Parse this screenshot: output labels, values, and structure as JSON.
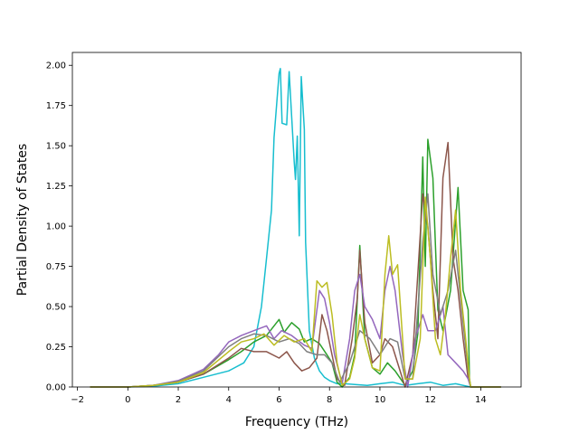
{
  "chart_data": {
    "type": "line",
    "title": "",
    "xlabel": "Frequency (THz)",
    "ylabel": "Partial Density of States",
    "xlim": [
      -2.2,
      15.6
    ],
    "ylim": [
      0.0,
      2.08
    ],
    "xticks": [
      -2,
      0,
      2,
      4,
      6,
      8,
      10,
      12,
      14
    ],
    "xtick_labels": [
      "−2",
      "0",
      "2",
      "4",
      "6",
      "8",
      "10",
      "12",
      "14"
    ],
    "yticks": [
      0.0,
      0.25,
      0.5,
      0.75,
      1.0,
      1.25,
      1.5,
      1.75,
      2.0
    ],
    "ytick_labels": [
      "0.00",
      "0.25",
      "0.50",
      "0.75",
      "1.00",
      "1.25",
      "1.50",
      "1.75",
      "2.00"
    ],
    "grid": false,
    "legend": "none",
    "series": [
      {
        "color": "#17becf",
        "points": [
          [
            -1.5,
            0
          ],
          [
            0,
            0
          ],
          [
            1,
            0.005
          ],
          [
            2,
            0.02
          ],
          [
            3,
            0.06
          ],
          [
            4,
            0.1
          ],
          [
            4.6,
            0.15
          ],
          [
            5,
            0.25
          ],
          [
            5.3,
            0.5
          ],
          [
            5.5,
            0.8
          ],
          [
            5.7,
            1.1
          ],
          [
            5.8,
            1.55
          ],
          [
            5.9,
            1.75
          ],
          [
            6.0,
            1.95
          ],
          [
            6.05,
            1.98
          ],
          [
            6.12,
            1.64
          ],
          [
            6.3,
            1.63
          ],
          [
            6.4,
            1.96
          ],
          [
            6.5,
            1.68
          ],
          [
            6.6,
            1.4
          ],
          [
            6.65,
            1.29
          ],
          [
            6.72,
            1.56
          ],
          [
            6.8,
            0.94
          ],
          [
            6.88,
            1.93
          ],
          [
            7.0,
            1.6
          ],
          [
            7.05,
            0.9
          ],
          [
            7.2,
            0.35
          ],
          [
            7.4,
            0.18
          ],
          [
            7.6,
            0.1
          ],
          [
            7.8,
            0.06
          ],
          [
            8,
            0.04
          ],
          [
            8.3,
            0.02
          ],
          [
            8.6,
            0.02
          ],
          [
            9,
            0.015
          ],
          [
            9.5,
            0.01
          ],
          [
            10,
            0.02
          ],
          [
            10.5,
            0.03
          ],
          [
            11,
            0.01
          ],
          [
            11.5,
            0.02
          ],
          [
            12,
            0.03
          ],
          [
            12.5,
            0.01
          ],
          [
            13,
            0.02
          ],
          [
            13.6,
            0.0
          ],
          [
            14.8,
            0.0
          ]
        ]
      },
      {
        "color": "#2ca02c",
        "points": [
          [
            -1.5,
            0
          ],
          [
            0,
            0
          ],
          [
            1,
            0.01
          ],
          [
            2,
            0.03
          ],
          [
            3,
            0.08
          ],
          [
            4,
            0.17
          ],
          [
            4.5,
            0.22
          ],
          [
            5,
            0.28
          ],
          [
            5.5,
            0.32
          ],
          [
            6.0,
            0.42
          ],
          [
            6.2,
            0.34
          ],
          [
            6.5,
            0.4
          ],
          [
            6.8,
            0.36
          ],
          [
            7.0,
            0.28
          ],
          [
            7.3,
            0.3
          ],
          [
            7.6,
            0.27
          ],
          [
            7.9,
            0.2
          ],
          [
            8.1,
            0.15
          ],
          [
            8.3,
            0.03
          ],
          [
            8.5,
            0.0
          ],
          [
            8.8,
            0.06
          ],
          [
            9.0,
            0.2
          ],
          [
            9.2,
            0.88
          ],
          [
            9.4,
            0.3
          ],
          [
            9.7,
            0.12
          ],
          [
            10,
            0.08
          ],
          [
            10.3,
            0.15
          ],
          [
            10.6,
            0.1
          ],
          [
            11.0,
            0.01
          ],
          [
            11.3,
            0.1
          ],
          [
            11.5,
            0.33
          ],
          [
            11.7,
            1.43
          ],
          [
            11.8,
            0.75
          ],
          [
            11.9,
            1.54
          ],
          [
            12.1,
            1.3
          ],
          [
            12.3,
            0.48
          ],
          [
            12.5,
            0.35
          ],
          [
            12.8,
            0.6
          ],
          [
            13.1,
            1.24
          ],
          [
            13.3,
            0.6
          ],
          [
            13.5,
            0.48
          ],
          [
            13.55,
            0.05
          ],
          [
            13.6,
            0.0
          ],
          [
            14.8,
            0.0
          ]
        ]
      },
      {
        "color": "#8c564b",
        "points": [
          [
            -1.5,
            0
          ],
          [
            0,
            0
          ],
          [
            1,
            0.01
          ],
          [
            2,
            0.03
          ],
          [
            3,
            0.08
          ],
          [
            4,
            0.18
          ],
          [
            4.5,
            0.24
          ],
          [
            5,
            0.22
          ],
          [
            5.5,
            0.22
          ],
          [
            6.0,
            0.18
          ],
          [
            6.3,
            0.22
          ],
          [
            6.6,
            0.15
          ],
          [
            6.9,
            0.1
          ],
          [
            7.2,
            0.12
          ],
          [
            7.5,
            0.18
          ],
          [
            7.7,
            0.45
          ],
          [
            7.9,
            0.35
          ],
          [
            8.1,
            0.2
          ],
          [
            8.3,
            0.05
          ],
          [
            8.6,
            0.01
          ],
          [
            8.9,
            0.3
          ],
          [
            9.1,
            0.55
          ],
          [
            9.2,
            0.85
          ],
          [
            9.4,
            0.4
          ],
          [
            9.7,
            0.15
          ],
          [
            10,
            0.2
          ],
          [
            10.2,
            0.3
          ],
          [
            10.5,
            0.25
          ],
          [
            11.0,
            0.0
          ],
          [
            11.3,
            0.2
          ],
          [
            11.5,
            0.7
          ],
          [
            11.7,
            1.2
          ],
          [
            11.9,
            1.0
          ],
          [
            12.1,
            0.6
          ],
          [
            12.3,
            0.3
          ],
          [
            12.5,
            1.3
          ],
          [
            12.7,
            1.52
          ],
          [
            12.9,
            0.8
          ],
          [
            13.1,
            0.6
          ],
          [
            13.3,
            0.3
          ],
          [
            13.5,
            0.05
          ],
          [
            13.6,
            0.0
          ],
          [
            14.8,
            0.0
          ]
        ]
      },
      {
        "color": "#9467bd",
        "points": [
          [
            -1.5,
            0
          ],
          [
            0,
            0
          ],
          [
            1,
            0.01
          ],
          [
            2,
            0.04
          ],
          [
            3,
            0.11
          ],
          [
            3.6,
            0.2
          ],
          [
            4,
            0.28
          ],
          [
            4.5,
            0.32
          ],
          [
            5,
            0.35
          ],
          [
            5.5,
            0.38
          ],
          [
            5.8,
            0.3
          ],
          [
            6.1,
            0.35
          ],
          [
            6.5,
            0.32
          ],
          [
            7.0,
            0.26
          ],
          [
            7.3,
            0.24
          ],
          [
            7.6,
            0.6
          ],
          [
            7.8,
            0.55
          ],
          [
            8.0,
            0.4
          ],
          [
            8.2,
            0.2
          ],
          [
            8.5,
            0.02
          ],
          [
            8.8,
            0.3
          ],
          [
            9.0,
            0.6
          ],
          [
            9.2,
            0.7
          ],
          [
            9.4,
            0.5
          ],
          [
            9.7,
            0.42
          ],
          [
            10,
            0.3
          ],
          [
            10.2,
            0.6
          ],
          [
            10.4,
            0.75
          ],
          [
            10.6,
            0.6
          ],
          [
            10.9,
            0.2
          ],
          [
            11.1,
            0.0
          ],
          [
            11.4,
            0.3
          ],
          [
            11.7,
            0.45
          ],
          [
            11.9,
            0.35
          ],
          [
            12.2,
            0.35
          ],
          [
            12.5,
            0.5
          ],
          [
            12.7,
            0.2
          ],
          [
            13.0,
            0.15
          ],
          [
            13.3,
            0.1
          ],
          [
            13.5,
            0.05
          ],
          [
            13.6,
            0.0
          ],
          [
            14.8,
            0.0
          ]
        ]
      },
      {
        "color": "#7f7f7f",
        "points": [
          [
            -1.5,
            0
          ],
          [
            0,
            0
          ],
          [
            1,
            0.01
          ],
          [
            2,
            0.035
          ],
          [
            3,
            0.1
          ],
          [
            4,
            0.25
          ],
          [
            4.5,
            0.3
          ],
          [
            5,
            0.33
          ],
          [
            5.5,
            0.32
          ],
          [
            6.0,
            0.28
          ],
          [
            6.4,
            0.3
          ],
          [
            6.8,
            0.27
          ],
          [
            7.1,
            0.22
          ],
          [
            7.5,
            0.2
          ],
          [
            7.8,
            0.2
          ],
          [
            8.1,
            0.15
          ],
          [
            8.4,
            0.03
          ],
          [
            8.8,
            0.15
          ],
          [
            9.2,
            0.35
          ],
          [
            9.6,
            0.3
          ],
          [
            10,
            0.2
          ],
          [
            10.4,
            0.3
          ],
          [
            10.7,
            0.28
          ],
          [
            11.0,
            0.05
          ],
          [
            11.3,
            0.05
          ],
          [
            11.7,
            0.9
          ],
          [
            11.9,
            1.2
          ],
          [
            12.1,
            0.7
          ],
          [
            12.4,
            0.45
          ],
          [
            12.7,
            0.6
          ],
          [
            13.0,
            0.85
          ],
          [
            13.3,
            0.4
          ],
          [
            13.5,
            0.1
          ],
          [
            13.6,
            0.0
          ],
          [
            14.8,
            0.0
          ]
        ]
      },
      {
        "color": "#bcbd22",
        "points": [
          [
            -1.5,
            0
          ],
          [
            0,
            0
          ],
          [
            1,
            0.01
          ],
          [
            2,
            0.03
          ],
          [
            3,
            0.09
          ],
          [
            4,
            0.22
          ],
          [
            4.5,
            0.28
          ],
          [
            5,
            0.3
          ],
          [
            5.4,
            0.33
          ],
          [
            5.8,
            0.26
          ],
          [
            6.2,
            0.32
          ],
          [
            6.6,
            0.28
          ],
          [
            7.0,
            0.3
          ],
          [
            7.3,
            0.22
          ],
          [
            7.5,
            0.66
          ],
          [
            7.7,
            0.62
          ],
          [
            7.9,
            0.65
          ],
          [
            8.1,
            0.45
          ],
          [
            8.3,
            0.15
          ],
          [
            8.5,
            0.01
          ],
          [
            8.8,
            0.05
          ],
          [
            9.0,
            0.18
          ],
          [
            9.2,
            0.45
          ],
          [
            9.4,
            0.3
          ],
          [
            9.7,
            0.12
          ],
          [
            10.0,
            0.1
          ],
          [
            10.2,
            0.7
          ],
          [
            10.35,
            0.94
          ],
          [
            10.5,
            0.7
          ],
          [
            10.7,
            0.76
          ],
          [
            10.9,
            0.3
          ],
          [
            11.0,
            0.05
          ],
          [
            11.3,
            0.05
          ],
          [
            11.6,
            0.3
          ],
          [
            11.8,
            1.18
          ],
          [
            12.0,
            0.8
          ],
          [
            12.2,
            0.3
          ],
          [
            12.4,
            0.2
          ],
          [
            12.6,
            0.45
          ],
          [
            12.8,
            0.8
          ],
          [
            13.0,
            1.1
          ],
          [
            13.2,
            0.6
          ],
          [
            13.4,
            0.3
          ],
          [
            13.55,
            0.05
          ],
          [
            13.6,
            0.0
          ],
          [
            14.8,
            0.0
          ]
        ]
      }
    ]
  }
}
